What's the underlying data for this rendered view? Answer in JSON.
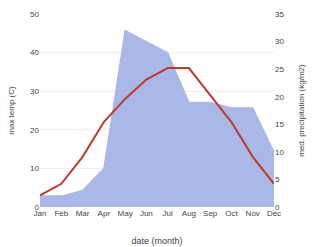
{
  "chart_data": {
    "type": "line",
    "categories": [
      "Jan",
      "Feb",
      "Mar",
      "Apr",
      "May",
      "Jun",
      "Jul",
      "Aug",
      "Sep",
      "Oct",
      "Nov",
      "Dec"
    ],
    "series": [
      {
        "type": "line",
        "color": "#c0392b",
        "values": [
          3,
          6,
          13,
          22,
          28,
          33,
          36,
          36,
          29,
          22,
          13,
          6
        ]
      },
      {
        "type": "area",
        "color": "#aab8e8",
        "axis": "y2",
        "values": [
          2,
          2,
          3,
          7,
          32,
          30,
          28,
          19,
          19,
          18,
          18,
          10
        ]
      }
    ],
    "xlabel": "date (month)",
    "ylabel": "max temp (C)",
    "y2label": "med. precipitation (kg/m2)",
    "ylim": [
      0,
      50
    ],
    "yticks": [
      0,
      10,
      20,
      30,
      40,
      50
    ],
    "y2lim": [
      0,
      35
    ],
    "y2ticks": [
      0,
      5,
      10,
      15,
      20,
      25,
      30,
      35
    ],
    "grid": true
  }
}
